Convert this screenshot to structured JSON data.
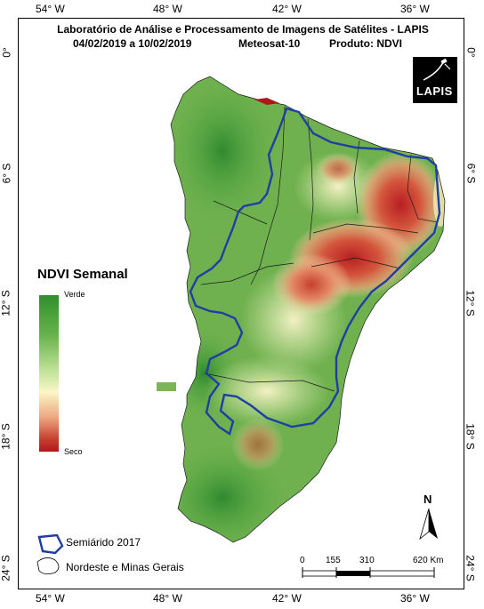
{
  "header": {
    "title": "Laboratório de Análise e Processamento de Imagens de Satélites - LAPIS",
    "period": "04/02/2019  a 10/02/2019",
    "satellite": "Meteosat-10",
    "product": "Produto: NDVI"
  },
  "logo": {
    "text": "LAPIS"
  },
  "graticule": {
    "top": [
      "54° W",
      "48° W",
      "42° W",
      "36° W"
    ],
    "bottom": [
      "54° W",
      "48° W",
      "42° W",
      "36° W"
    ],
    "left": [
      "0°",
      "6° S",
      "12° S",
      "18° S",
      "24° S"
    ],
    "right": [
      "0°",
      "6° S",
      "12° S",
      "18° S",
      "24° S"
    ]
  },
  "legend": {
    "title": "NDVI Semanal",
    "high_label": "Verde",
    "low_label": "Seco",
    "colors": [
      "#2f8f2c",
      "#cfe9a5",
      "#fbf5c8",
      "#b0171b"
    ],
    "items": [
      {
        "label": "Semiárido 2017",
        "color": "#1f3fa3"
      },
      {
        "label": "Nordeste e Minas Gerais",
        "color": "#000000"
      }
    ]
  },
  "scale_bar": {
    "labels": [
      "0",
      "155",
      "310",
      "620 Km"
    ]
  },
  "north_arrow": {
    "label": "N"
  }
}
